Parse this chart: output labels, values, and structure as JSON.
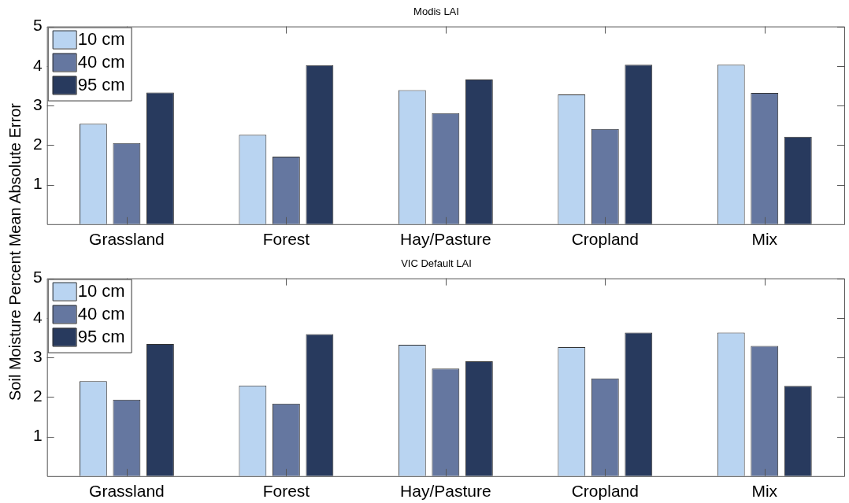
{
  "chart_data": [
    {
      "type": "bar",
      "title": "Modis LAI",
      "ylabel": "Soil Moisture Percent Mean Absolute Error",
      "categories": [
        "Grassland",
        "Forest",
        "Hay/Pasture",
        "Cropland",
        "Mix"
      ],
      "series": [
        {
          "name": "10 cm",
          "color": "#b9d4f1",
          "values": [
            2.54,
            2.26,
            3.39,
            3.28,
            4.03
          ]
        },
        {
          "name": "40 cm",
          "color": "#6577a0",
          "values": [
            2.05,
            1.71,
            2.81,
            2.41,
            3.32
          ]
        },
        {
          "name": "95 cm",
          "color": "#283a5e",
          "values": [
            3.33,
            4.02,
            3.66,
            4.03,
            2.21
          ]
        }
      ],
      "ylim": [
        0,
        5
      ],
      "yticks": [
        1,
        2,
        3,
        4,
        5
      ],
      "legend": "top left"
    },
    {
      "type": "bar",
      "title": "VIC Default LAI",
      "categories": [
        "Grassland",
        "Forest",
        "Hay/Pasture",
        "Cropland",
        "Mix"
      ],
      "series": [
        {
          "name": "10 cm",
          "color": "#b9d4f1",
          "values": [
            2.4,
            2.29,
            3.32,
            3.26,
            3.63
          ]
        },
        {
          "name": "40 cm",
          "color": "#6577a0",
          "values": [
            1.93,
            1.83,
            2.72,
            2.47,
            3.29
          ]
        },
        {
          "name": "95 cm",
          "color": "#283a5e",
          "values": [
            3.34,
            3.59,
            2.9,
            3.63,
            2.28
          ]
        }
      ],
      "ylim": [
        0,
        5
      ],
      "yticks": [
        1,
        2,
        3,
        4,
        5
      ],
      "legend": "top left"
    }
  ]
}
